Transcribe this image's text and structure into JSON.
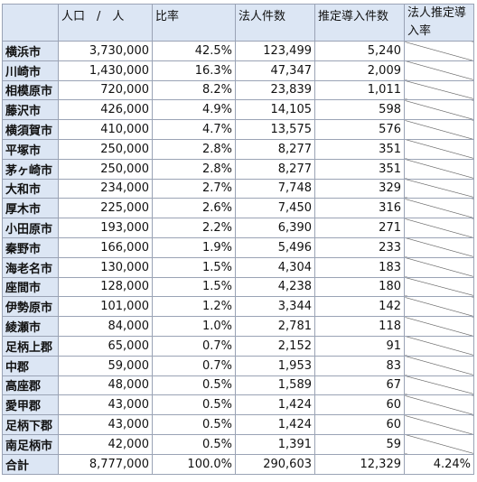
{
  "headers": [
    "",
    "人口　/　人",
    "比率",
    "法人件数",
    "推定導入件数",
    "法人推定導入率"
  ],
  "rows": [
    [
      "横浜市",
      "3,730,000",
      "42.5%",
      "123,499",
      "5,240"
    ],
    [
      "川崎市",
      "1,430,000",
      "16.3%",
      "47,347",
      "2,009"
    ],
    [
      "相模原市",
      "720,000",
      "8.2%",
      "23,839",
      "1,011"
    ],
    [
      "藤沢市",
      "426,000",
      "4.9%",
      "14,105",
      "598"
    ],
    [
      "横須賀市",
      "410,000",
      "4.7%",
      "13,575",
      "576"
    ],
    [
      "平塚市",
      "250,000",
      "2.8%",
      "8,277",
      "351"
    ],
    [
      "茅ヶ崎市",
      "250,000",
      "2.8%",
      "8,277",
      "351"
    ],
    [
      "大和市",
      "234,000",
      "2.7%",
      "7,748",
      "329"
    ],
    [
      "厚木市",
      "225,000",
      "2.6%",
      "7,450",
      "316"
    ],
    [
      "小田原市",
      "193,000",
      "2.2%",
      "6,390",
      "271"
    ],
    [
      "秦野市",
      "166,000",
      "1.9%",
      "5,496",
      "233"
    ],
    [
      "海老名市",
      "130,000",
      "1.5%",
      "4,304",
      "183"
    ],
    [
      "座間市",
      "128,000",
      "1.5%",
      "4,238",
      "180"
    ],
    [
      "伊勢原市",
      "101,000",
      "1.2%",
      "3,344",
      "142"
    ],
    [
      "綾瀬市",
      "84,000",
      "1.0%",
      "2,781",
      "118"
    ],
    [
      "足柄上郡",
      "65,000",
      "0.7%",
      "2,152",
      "91"
    ],
    [
      "中郡",
      "59,000",
      "0.7%",
      "1,953",
      "83"
    ],
    [
      "高座郡",
      "48,000",
      "0.5%",
      "1,589",
      "67"
    ],
    [
      "愛甲郡",
      "43,000",
      "0.5%",
      "1,424",
      "60"
    ],
    [
      "足柄下郡",
      "43,000",
      "0.5%",
      "1,424",
      "60"
    ],
    [
      "南足柄市",
      "42,000",
      "0.5%",
      "1,391",
      "59"
    ]
  ],
  "total": [
    "合計",
    "8,777,000",
    "100.0%",
    "290,603",
    "12,329",
    "4.24%"
  ]
}
